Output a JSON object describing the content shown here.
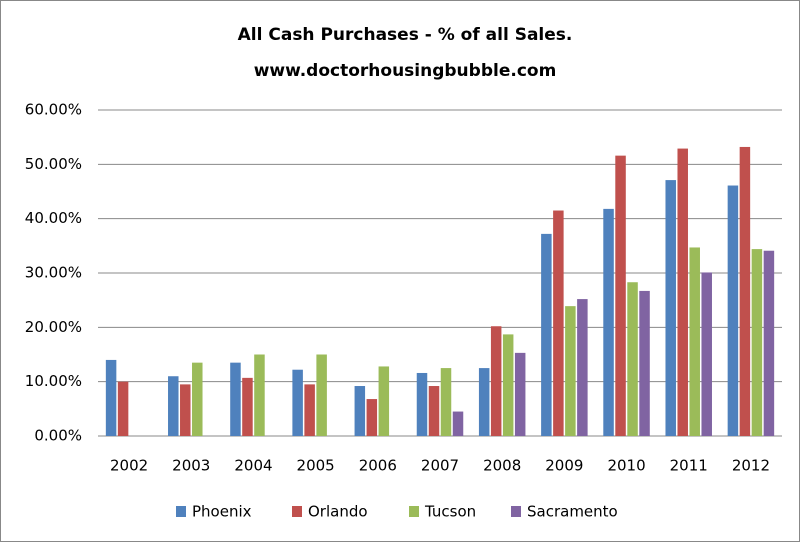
{
  "chart_data": {
    "type": "bar",
    "title": "All Cash Purchases - % of all Sales.",
    "subtitle": "www.doctorhousingbubble.com",
    "categories": [
      "2002",
      "2003",
      "2004",
      "2005",
      "2006",
      "2007",
      "2008",
      "2009",
      "2010",
      "2011",
      "2012"
    ],
    "series": [
      {
        "name": "Phoenix",
        "color": "#4f81bd",
        "values": [
          14.0,
          11.0,
          13.5,
          12.2,
          9.2,
          11.6,
          12.5,
          37.2,
          41.8,
          47.1,
          46.1
        ]
      },
      {
        "name": "Orlando",
        "color": "#c0504d",
        "values": [
          10.0,
          9.5,
          10.7,
          9.5,
          6.8,
          9.2,
          20.2,
          41.5,
          51.6,
          52.9,
          53.2
        ]
      },
      {
        "name": "Tucson",
        "color": "#9bbb59",
        "values": [
          null,
          13.5,
          15.0,
          15.0,
          12.8,
          12.5,
          18.7,
          23.9,
          28.3,
          34.7,
          34.4
        ]
      },
      {
        "name": "Sacramento",
        "color": "#8064a2",
        "values": [
          null,
          null,
          null,
          null,
          null,
          4.5,
          15.3,
          25.2,
          26.7,
          30.1,
          34.1
        ]
      }
    ],
    "ylim": [
      0,
      60
    ],
    "yticks": [
      {
        "value": 0,
        "label": "0.00%"
      },
      {
        "value": 10,
        "label": "10.00%"
      },
      {
        "value": 20,
        "label": "20.00%"
      },
      {
        "value": 30,
        "label": "30.00%"
      },
      {
        "value": 40,
        "label": "40.00%"
      },
      {
        "value": 50,
        "label": "50.00%"
      },
      {
        "value": 60,
        "label": "60.00%"
      }
    ],
    "grid": true,
    "legend": "bottom"
  }
}
